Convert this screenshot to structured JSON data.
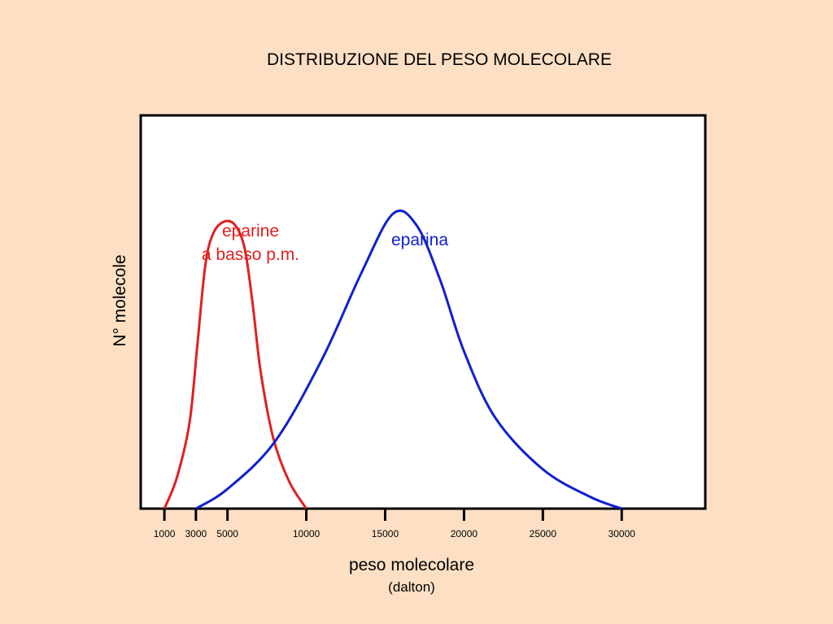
{
  "chart_data": {
    "type": "line",
    "title": "DISTRIBUZIONE DEL PESO MOLECOLARE",
    "ylabel": "N° molecole",
    "xlabel": "peso molecolare",
    "xunit": "(dalton)",
    "xlim": [
      -500,
      35300
    ],
    "ylim": [
      0,
      1
    ],
    "grid": false,
    "ticks": [
      {
        "v": 1000,
        "label": "1000"
      },
      {
        "v": 3000,
        "label": "3000"
      },
      {
        "v": 5000,
        "label": "5000"
      },
      {
        "v": 10000,
        "label": "10000"
      },
      {
        "v": 15000,
        "label": "15000"
      },
      {
        "v": 20000,
        "label": "20000"
      },
      {
        "v": 25000,
        "label": "25000"
      },
      {
        "v": 30000,
        "label": "30000"
      }
    ],
    "series": [
      {
        "name": "eparine a basso p.m.",
        "color": "#E02020",
        "label_lines": [
          "eparine",
          "a basso p.m."
        ],
        "points": [
          [
            1000,
            0
          ],
          [
            1800,
            0.08
          ],
          [
            2600,
            0.22
          ],
          [
            3100,
            0.42
          ],
          [
            3600,
            0.62
          ],
          [
            4100,
            0.7
          ],
          [
            4800,
            0.73
          ],
          [
            5500,
            0.72
          ],
          [
            6100,
            0.66
          ],
          [
            6600,
            0.52
          ],
          [
            7100,
            0.35
          ],
          [
            7900,
            0.18
          ],
          [
            8900,
            0.07
          ],
          [
            10000,
            0
          ]
        ]
      },
      {
        "name": "eparina",
        "color": "#1020D0",
        "label_lines": [
          "eparina"
        ],
        "points": [
          [
            3000,
            0
          ],
          [
            5000,
            0.05
          ],
          [
            8000,
            0.17
          ],
          [
            11000,
            0.38
          ],
          [
            13500,
            0.6
          ],
          [
            15500,
            0.75
          ],
          [
            17000,
            0.72
          ],
          [
            18500,
            0.58
          ],
          [
            20000,
            0.4
          ],
          [
            22000,
            0.23
          ],
          [
            25000,
            0.1
          ],
          [
            28000,
            0.03
          ],
          [
            30000,
            0
          ]
        ]
      }
    ]
  }
}
